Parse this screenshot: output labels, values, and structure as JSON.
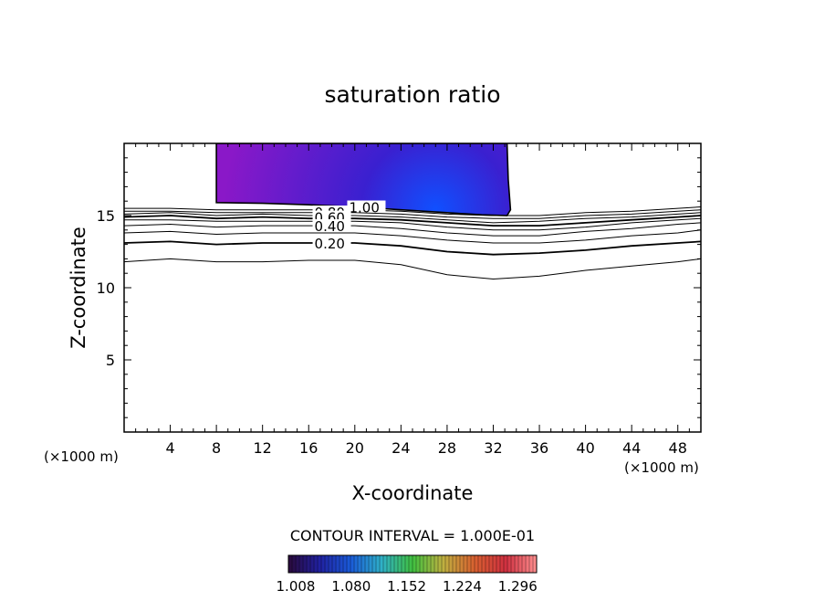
{
  "chart_data": {
    "type": "contour",
    "title": "saturation ratio",
    "xlabel": "X-coordinate",
    "ylabel": "Z-coordinate",
    "x_unit_label": "(×1000 m)",
    "y_unit_label": "(×1000 m)",
    "xlim": [
      0,
      50
    ],
    "ylim": [
      0,
      20
    ],
    "x_ticks": [
      4,
      8,
      12,
      16,
      20,
      24,
      28,
      32,
      36,
      40,
      44,
      48
    ],
    "y_ticks": [
      5,
      10,
      15
    ],
    "contour_interval_text": "CONTOUR INTERVAL = 1.000E-01",
    "contour_labels": [
      "1.00",
      "0.80",
      "0.60",
      "0.40",
      "0.20"
    ],
    "contour_levels": [
      {
        "level": 0.1,
        "z": [
          [
            0,
            11.8
          ],
          [
            2,
            11.9
          ],
          [
            4,
            12.0
          ],
          [
            6,
            11.9
          ],
          [
            8,
            11.8
          ],
          [
            12,
            11.8
          ],
          [
            16,
            11.9
          ],
          [
            20,
            11.9
          ],
          [
            24,
            11.6
          ],
          [
            28,
            10.9
          ],
          [
            32,
            10.6
          ],
          [
            36,
            10.8
          ],
          [
            40,
            11.2
          ],
          [
            44,
            11.5
          ],
          [
            48,
            11.8
          ],
          [
            50,
            12.0
          ]
        ]
      },
      {
        "level": 0.2,
        "z": [
          [
            0,
            13.1
          ],
          [
            4,
            13.2
          ],
          [
            8,
            13.0
          ],
          [
            12,
            13.1
          ],
          [
            16,
            13.1
          ],
          [
            20,
            13.1
          ],
          [
            24,
            12.9
          ],
          [
            28,
            12.5
          ],
          [
            32,
            12.3
          ],
          [
            36,
            12.4
          ],
          [
            40,
            12.6
          ],
          [
            44,
            12.9
          ],
          [
            48,
            13.1
          ],
          [
            50,
            13.2
          ]
        ]
      },
      {
        "level": 0.3,
        "z": [
          [
            0,
            13.8
          ],
          [
            4,
            13.9
          ],
          [
            8,
            13.7
          ],
          [
            12,
            13.8
          ],
          [
            16,
            13.8
          ],
          [
            20,
            13.8
          ],
          [
            24,
            13.6
          ],
          [
            28,
            13.3
          ],
          [
            32,
            13.1
          ],
          [
            36,
            13.1
          ],
          [
            40,
            13.3
          ],
          [
            44,
            13.6
          ],
          [
            48,
            13.8
          ],
          [
            50,
            14.0
          ]
        ]
      },
      {
        "level": 0.4,
        "z": [
          [
            0,
            14.3
          ],
          [
            4,
            14.4
          ],
          [
            8,
            14.2
          ],
          [
            12,
            14.3
          ],
          [
            16,
            14.3
          ],
          [
            20,
            14.3
          ],
          [
            24,
            14.1
          ],
          [
            28,
            13.8
          ],
          [
            32,
            13.6
          ],
          [
            36,
            13.6
          ],
          [
            40,
            13.9
          ],
          [
            44,
            14.1
          ],
          [
            48,
            14.4
          ],
          [
            50,
            14.5
          ]
        ]
      },
      {
        "level": 0.5,
        "z": [
          [
            0,
            14.7
          ],
          [
            4,
            14.7
          ],
          [
            8,
            14.6
          ],
          [
            12,
            14.6
          ],
          [
            16,
            14.6
          ],
          [
            20,
            14.6
          ],
          [
            24,
            14.5
          ],
          [
            28,
            14.2
          ],
          [
            32,
            14.0
          ],
          [
            36,
            14.0
          ],
          [
            40,
            14.2
          ],
          [
            44,
            14.5
          ],
          [
            48,
            14.7
          ],
          [
            50,
            14.8
          ]
        ]
      },
      {
        "level": 0.6,
        "z": [
          [
            0,
            14.9
          ],
          [
            4,
            15.0
          ],
          [
            8,
            14.8
          ],
          [
            12,
            14.9
          ],
          [
            16,
            14.8
          ],
          [
            20,
            14.8
          ],
          [
            24,
            14.7
          ],
          [
            28,
            14.5
          ],
          [
            32,
            14.3
          ],
          [
            36,
            14.3
          ],
          [
            40,
            14.5
          ],
          [
            44,
            14.7
          ],
          [
            48,
            14.9
          ],
          [
            50,
            15.0
          ]
        ]
      },
      {
        "level": 0.7,
        "z": [
          [
            0,
            15.1
          ],
          [
            4,
            15.2
          ],
          [
            8,
            15.0
          ],
          [
            12,
            15.1
          ],
          [
            16,
            15.0
          ],
          [
            20,
            15.0
          ],
          [
            24,
            14.9
          ],
          [
            28,
            14.7
          ],
          [
            32,
            14.5
          ],
          [
            36,
            14.6
          ],
          [
            40,
            14.8
          ],
          [
            44,
            14.9
          ],
          [
            48,
            15.1
          ],
          [
            50,
            15.2
          ]
        ]
      },
      {
        "level": 0.8,
        "z": [
          [
            0,
            15.3
          ],
          [
            4,
            15.3
          ],
          [
            8,
            15.2
          ],
          [
            12,
            15.2
          ],
          [
            16,
            15.2
          ],
          [
            20,
            15.2
          ],
          [
            24,
            15.1
          ],
          [
            28,
            14.9
          ],
          [
            32,
            14.8
          ],
          [
            36,
            14.8
          ],
          [
            40,
            15.0
          ],
          [
            44,
            15.1
          ],
          [
            48,
            15.3
          ],
          [
            50,
            15.4
          ]
        ]
      },
      {
        "level": 0.9,
        "z": [
          [
            0,
            15.5
          ],
          [
            4,
            15.5
          ],
          [
            8,
            15.4
          ],
          [
            12,
            15.4
          ],
          [
            16,
            15.4
          ],
          [
            20,
            15.4
          ],
          [
            24,
            15.3
          ],
          [
            28,
            15.1
          ],
          [
            32,
            15.0
          ],
          [
            36,
            15.0
          ],
          [
            40,
            15.2
          ],
          [
            44,
            15.3
          ],
          [
            48,
            15.5
          ],
          [
            50,
            15.6
          ]
        ]
      }
    ],
    "supersaturated_region": {
      "level": 1.0,
      "x_range": [
        8,
        33.5
      ],
      "z_range": [
        15.0,
        20
      ],
      "max_location": [
        27,
        15.4
      ],
      "max_value": 1.33
    },
    "colorbar": {
      "min": 1.008,
      "max": 1.33,
      "tick_labels": [
        "1.008",
        "1.080",
        "1.152",
        "1.224",
        "1.296"
      ],
      "colormap": [
        "#2a0a3a",
        "#2020a0",
        "#1a5ad8",
        "#2fb0c8",
        "#40c040",
        "#c0b040",
        "#d86030",
        "#d03040",
        "#ff9090"
      ]
    },
    "fill_colors": {
      "low": "#8a18c8",
      "mid": "#3a20d0",
      "high": "#1050ff"
    }
  }
}
